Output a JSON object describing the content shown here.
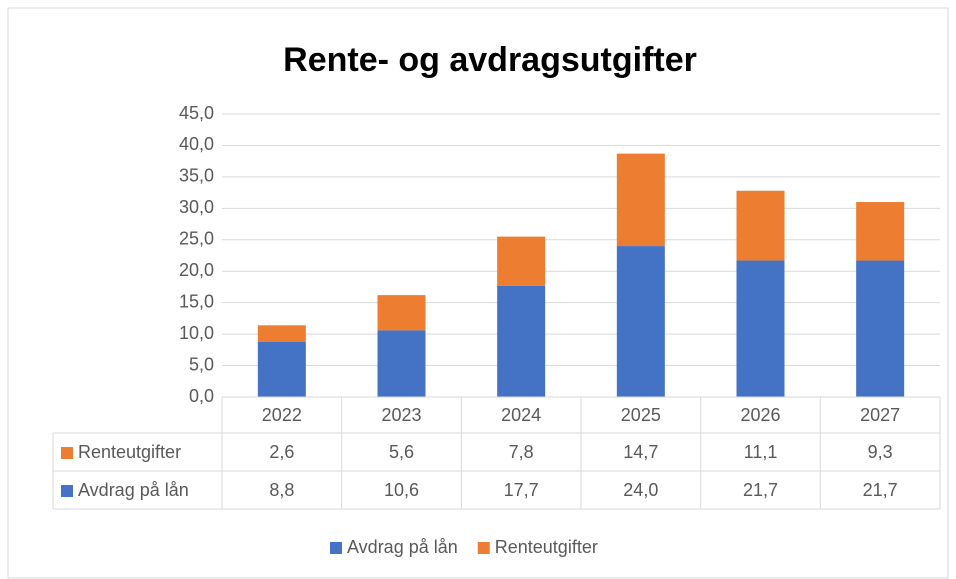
{
  "chart_data": {
    "type": "stacked_bar",
    "title": "Rente- og avdragsutgifter",
    "categories": [
      "2022",
      "2023",
      "2024",
      "2025",
      "2026",
      "2027"
    ],
    "series": [
      {
        "name": "Avdrag på lån",
        "color": "#4472c4",
        "values": [
          8.8,
          10.6,
          17.7,
          24,
          21.7,
          21.7
        ],
        "value_labels": [
          "8,8",
          "10,6",
          "17,7",
          "24,0",
          "21,7",
          "21,7"
        ]
      },
      {
        "name": "Renteutgifter",
        "color": "#ed7d31",
        "values": [
          2.6,
          5.6,
          7.8,
          14.7,
          11.1,
          9.3
        ],
        "value_labels": [
          "2,6",
          "5,6",
          "7,8",
          "14,7",
          "11,1",
          "9,3"
        ]
      }
    ],
    "ylim": [
      0,
      45
    ],
    "yticks": [
      {
        "value": 0,
        "label": "0,0"
      },
      {
        "value": 5,
        "label": "5,0"
      },
      {
        "value": 10,
        "label": "10,0"
      },
      {
        "value": 15,
        "label": "15,0"
      },
      {
        "value": 20,
        "label": "20,0"
      },
      {
        "value": 25,
        "label": "25,0"
      },
      {
        "value": 30,
        "label": "30,0"
      },
      {
        "value": 35,
        "label": "35,0"
      },
      {
        "value": 40,
        "label": "40,0"
      },
      {
        "value": 45,
        "label": "45,0"
      }
    ],
    "grid": true,
    "legend": "bottom",
    "data_table": true
  }
}
